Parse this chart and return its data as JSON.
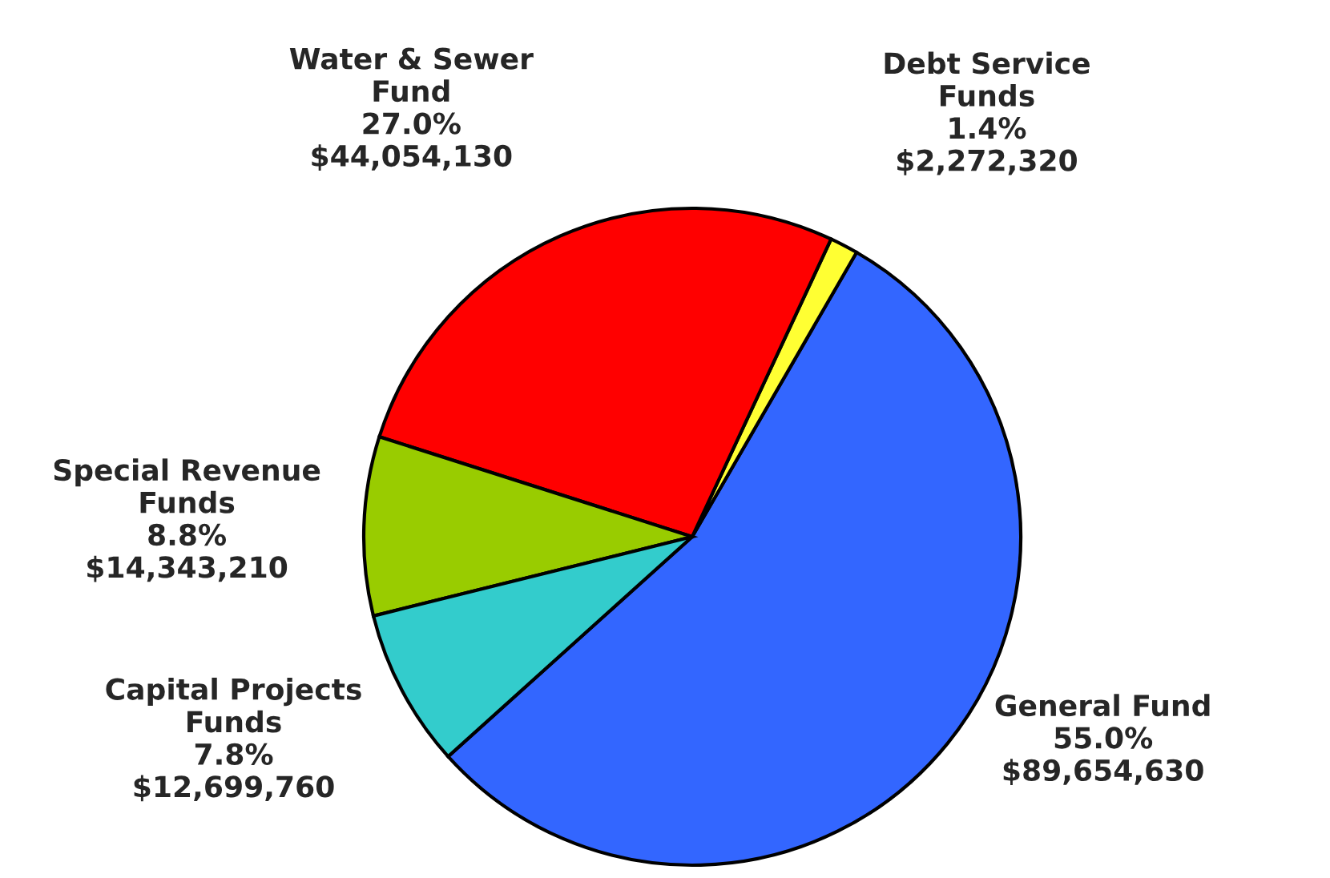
{
  "chart_data": {
    "type": "pie",
    "categories": [
      "General Fund",
      "Debt Service\nFunds",
      "Water & Sewer\nFund",
      "Special Revenue\nFunds",
      "Capital Projects\nFunds"
    ],
    "values": [
      89654630,
      2272320,
      44054130,
      14343210,
      12699760
    ],
    "value_labels": [
      "55.0%\n$89,654,630",
      "1.4%\n$2,272,320",
      "27.0%\n$44,054,130",
      "8.8%\n$14,343,210",
      "7.8%\n$12,699,760"
    ],
    "colors": [
      "#3366ff",
      "#ffff33",
      "#ff0000",
      "#99cc00",
      "#33cccc"
    ]
  }
}
